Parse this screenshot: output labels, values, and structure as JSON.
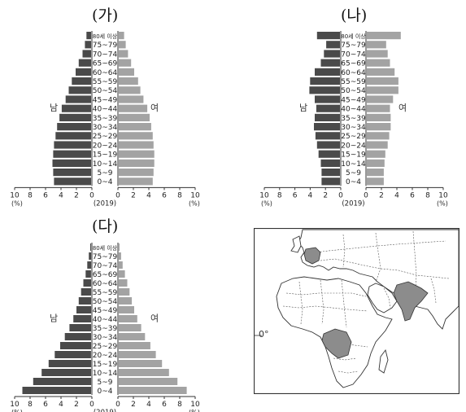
{
  "chart_data": [
    {
      "type": "bar",
      "title": "(가)",
      "year": "(2019)",
      "male_label": "남",
      "female_label": "여",
      "axis_unit": "(%)",
      "axis_ticks": [
        "10",
        "8",
        "6",
        "4",
        "2",
        "0",
        "0",
        "2",
        "4",
        "6",
        "8",
        "10"
      ],
      "xlim": [
        0,
        10
      ],
      "categories": [
        "80세 이상",
        "75~79",
        "70~74",
        "65~69",
        "60~64",
        "55~59",
        "50~54",
        "45~49",
        "40~44",
        "35~39",
        "30~34",
        "25~29",
        "20~24",
        "15~19",
        "10~14",
        "5~9",
        "0~4"
      ],
      "series": [
        {
          "name": "남",
          "values": [
            0.6,
            0.8,
            1.1,
            1.6,
            2.0,
            2.5,
            2.9,
            3.3,
            3.8,
            4.1,
            4.4,
            4.6,
            4.8,
            4.9,
            5.0,
            4.9,
            4.8
          ]
        },
        {
          "name": "여",
          "values": [
            0.7,
            0.9,
            1.2,
            1.6,
            2.0,
            2.5,
            2.8,
            3.2,
            3.7,
            4.0,
            4.2,
            4.4,
            4.5,
            4.6,
            4.6,
            4.5,
            4.4
          ]
        }
      ]
    },
    {
      "type": "bar",
      "title": "(나)",
      "year": "(2019)",
      "male_label": "남",
      "female_label": "여",
      "axis_unit": "(%)",
      "axis_ticks": [
        "10",
        "8",
        "6",
        "4",
        "2",
        "0",
        "0",
        "2",
        "4",
        "6",
        "8",
        "10"
      ],
      "xlim": [
        0,
        10
      ],
      "categories": [
        "80세 이상",
        "75~79",
        "70~74",
        "65~69",
        "60~64",
        "55~59",
        "50~54",
        "45~49",
        "40~44",
        "35~39",
        "30~34",
        "25~29",
        "20~24",
        "15~19",
        "10~14",
        "5~9",
        "0~4"
      ],
      "series": [
        {
          "name": "남",
          "values": [
            3.0,
            1.8,
            2.1,
            2.5,
            3.3,
            3.9,
            4.0,
            3.3,
            3.1,
            3.3,
            3.4,
            3.2,
            3.0,
            2.8,
            2.5,
            2.4,
            2.4
          ]
        },
        {
          "name": "여",
          "values": [
            4.4,
            2.5,
            2.7,
            3.0,
            3.6,
            4.1,
            4.1,
            3.4,
            3.0,
            3.1,
            3.1,
            2.9,
            2.7,
            2.4,
            2.3,
            2.2,
            2.2
          ]
        }
      ]
    },
    {
      "type": "bar",
      "title": "(다)",
      "year": "(2019)",
      "male_label": "남",
      "female_label": "여",
      "axis_unit": "(%)",
      "axis_ticks": [
        "10",
        "8",
        "6",
        "4",
        "2",
        "0",
        "0",
        "2",
        "4",
        "6",
        "8",
        "10"
      ],
      "xlim": [
        0,
        10
      ],
      "categories": [
        "80세 이상",
        "75~79",
        "70~74",
        "65~69",
        "60~64",
        "55~59",
        "50~54",
        "45~49",
        "40~44",
        "35~39",
        "30~34",
        "25~29",
        "20~24",
        "15~19",
        "10~14",
        "5~9",
        "0~4"
      ],
      "series": [
        {
          "name": "남",
          "values": [
            0.1,
            0.3,
            0.5,
            0.7,
            1.0,
            1.3,
            1.6,
            1.9,
            2.3,
            2.8,
            3.4,
            4.0,
            4.7,
            5.5,
            6.4,
            7.5,
            8.9
          ]
        },
        {
          "name": "여",
          "values": [
            0.1,
            0.3,
            0.5,
            0.8,
            1.1,
            1.4,
            1.7,
            2.0,
            2.4,
            2.9,
            3.4,
            4.1,
            4.8,
            5.6,
            6.5,
            7.6,
            8.8
          ]
        }
      ]
    }
  ],
  "map": {
    "equator_label": "0°",
    "highlight_color": "#8c8c8c",
    "highlighted_countries": [
      "germany",
      "india",
      "dr-congo"
    ]
  }
}
